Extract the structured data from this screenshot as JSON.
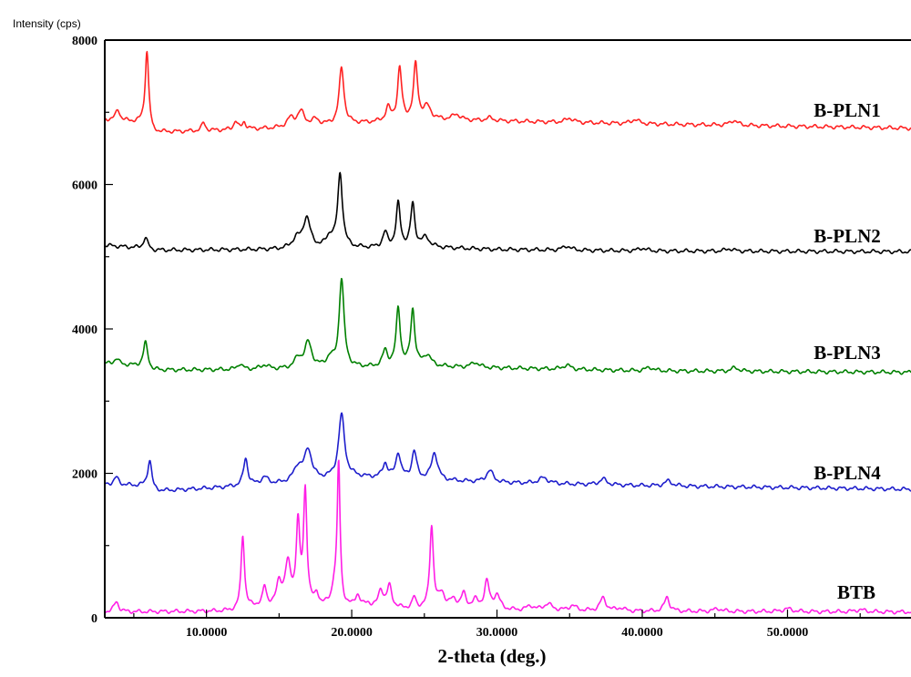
{
  "chart_data": {
    "type": "line",
    "ylabel": "Intensity (cps)",
    "xlabel": "2-theta (deg.)",
    "xlim": [
      3,
      58.5
    ],
    "ylim": [
      0,
      8000
    ],
    "grid": false,
    "x_ticks": [
      10,
      20,
      30,
      40,
      50
    ],
    "x_tick_labels": [
      "10.0000",
      "20.0000",
      "30.0000",
      "40.0000",
      "50.0000"
    ],
    "y_ticks": [
      0,
      2000,
      4000,
      6000,
      8000
    ],
    "y_tick_labels": [
      "0",
      "2000",
      "4000",
      "6000",
      "8000"
    ],
    "series": [
      {
        "name": "B-PLN1",
        "color": "#ff2222",
        "baseline": [
          [
            3,
            6900
          ],
          [
            6,
            6850
          ],
          [
            6.3,
            6720
          ],
          [
            15,
            6780
          ],
          [
            25,
            6900
          ],
          [
            30,
            6880
          ],
          [
            40,
            6840
          ],
          [
            58.5,
            6780
          ]
        ],
        "peaks": [
          [
            3.9,
            150,
            0.18
          ],
          [
            5.9,
            1000,
            0.14
          ],
          [
            9.8,
            110,
            0.15
          ],
          [
            12,
            120,
            0.15
          ],
          [
            12.6,
            100,
            0.15
          ],
          [
            15.8,
            120,
            0.3
          ],
          [
            16.5,
            200,
            0.3
          ],
          [
            17.5,
            80,
            0.3
          ],
          [
            19.3,
            780,
            0.2
          ],
          [
            22.5,
            180,
            0.2
          ],
          [
            23.3,
            720,
            0.17
          ],
          [
            24.4,
            760,
            0.17
          ],
          [
            25.2,
            170,
            0.3
          ],
          [
            27.2,
            80,
            0.3
          ],
          [
            29.5,
            40,
            0.3
          ],
          [
            35,
            60,
            0.3
          ],
          [
            39.5,
            60,
            0.3
          ],
          [
            46.3,
            70,
            0.3
          ]
        ]
      },
      {
        "name": "B-PLN2",
        "color": "#000000",
        "baseline": [
          [
            3,
            5160
          ],
          [
            6,
            5110
          ],
          [
            6.3,
            5090
          ],
          [
            15,
            5100
          ],
          [
            25,
            5130
          ],
          [
            30,
            5100
          ],
          [
            40,
            5080
          ],
          [
            58.5,
            5070
          ]
        ],
        "peaks": [
          [
            5.8,
            150,
            0.18
          ],
          [
            16.2,
            130,
            0.35
          ],
          [
            16.9,
            420,
            0.3
          ],
          [
            18.5,
            150,
            0.3
          ],
          [
            19.2,
            1020,
            0.2
          ],
          [
            22.3,
            200,
            0.2
          ],
          [
            23.2,
            600,
            0.17
          ],
          [
            24.2,
            590,
            0.17
          ],
          [
            25.1,
            130,
            0.3
          ],
          [
            34.8,
            60,
            0.3
          ],
          [
            40,
            40,
            0.3
          ],
          [
            46,
            35,
            0.3
          ]
        ]
      },
      {
        "name": "B-PLN3",
        "color": "#008000",
        "baseline": [
          [
            3,
            3520
          ],
          [
            6,
            3480
          ],
          [
            6.3,
            3430
          ],
          [
            15,
            3440
          ],
          [
            25,
            3480
          ],
          [
            30,
            3460
          ],
          [
            40,
            3420
          ],
          [
            58.5,
            3400
          ]
        ],
        "peaks": [
          [
            3.8,
            80,
            0.2
          ],
          [
            5.8,
            330,
            0.17
          ],
          [
            12.3,
            80,
            0.2
          ],
          [
            14,
            60,
            0.3
          ],
          [
            16.3,
            130,
            0.3
          ],
          [
            17,
            350,
            0.3
          ],
          [
            18.5,
            120,
            0.3
          ],
          [
            19.3,
            1230,
            0.2
          ],
          [
            22.3,
            220,
            0.2
          ],
          [
            23.2,
            800,
            0.17
          ],
          [
            24.2,
            780,
            0.17
          ],
          [
            25.2,
            150,
            0.3
          ],
          [
            28.5,
            70,
            0.3
          ],
          [
            34.8,
            60,
            0.3
          ],
          [
            40.5,
            50,
            0.3
          ],
          [
            46.4,
            50,
            0.3
          ]
        ]
      },
      {
        "name": "B-PLN4",
        "color": "#1e1ecc",
        "baseline": [
          [
            3,
            1850
          ],
          [
            6,
            1820
          ],
          [
            6.4,
            1750
          ],
          [
            15,
            1850
          ],
          [
            20,
            1950
          ],
          [
            26,
            1900
          ],
          [
            30,
            1870
          ],
          [
            40,
            1830
          ],
          [
            58.5,
            1780
          ]
        ],
        "peaks": [
          [
            3.8,
            100,
            0.2
          ],
          [
            6.1,
            380,
            0.17
          ],
          [
            12.7,
            380,
            0.18
          ],
          [
            14,
            100,
            0.3
          ],
          [
            16.3,
            200,
            0.35
          ],
          [
            17,
            420,
            0.3
          ],
          [
            19.3,
            870,
            0.25
          ],
          [
            22.3,
            200,
            0.2
          ],
          [
            23.2,
            350,
            0.2
          ],
          [
            24.3,
            380,
            0.2
          ],
          [
            25.7,
            380,
            0.25
          ],
          [
            29.5,
            160,
            0.3
          ],
          [
            33.2,
            80,
            0.4
          ],
          [
            37.3,
            80,
            0.3
          ],
          [
            41.8,
            70,
            0.3
          ]
        ]
      },
      {
        "name": "BTB",
        "color": "#ff1ee6",
        "baseline": [
          [
            3,
            80
          ],
          [
            12,
            90
          ],
          [
            13.5,
            150
          ],
          [
            18,
            150
          ],
          [
            20,
            130
          ],
          [
            30,
            100
          ],
          [
            40,
            90
          ],
          [
            58.5,
            80
          ]
        ],
        "peaks": [
          [
            3.8,
            140,
            0.2
          ],
          [
            12.5,
            1030,
            0.14
          ],
          [
            14,
            260,
            0.15
          ],
          [
            15,
            300,
            0.2
          ],
          [
            15.6,
            560,
            0.25
          ],
          [
            16.3,
            1100,
            0.15
          ],
          [
            16.8,
            1560,
            0.14
          ],
          [
            17.6,
            140,
            0.15
          ],
          [
            18.8,
            240,
            0.2
          ],
          [
            19.1,
            1950,
            0.12
          ],
          [
            20.4,
            170,
            0.2
          ],
          [
            21.1,
            60,
            0.2
          ],
          [
            22,
            250,
            0.2
          ],
          [
            22.6,
            300,
            0.2
          ],
          [
            24.3,
            150,
            0.15
          ],
          [
            25.5,
            1140,
            0.15
          ],
          [
            26.2,
            200,
            0.25
          ],
          [
            27,
            120,
            0.3
          ],
          [
            27.7,
            200,
            0.2
          ],
          [
            28.5,
            120,
            0.25
          ],
          [
            29.3,
            380,
            0.2
          ],
          [
            30,
            200,
            0.25
          ],
          [
            32.3,
            60,
            0.3
          ],
          [
            33.5,
            90,
            0.35
          ],
          [
            35.2,
            70,
            0.3
          ],
          [
            37.3,
            180,
            0.25
          ],
          [
            38.5,
            40,
            0.3
          ],
          [
            41.7,
            200,
            0.2
          ],
          [
            45.2,
            40,
            0.3
          ],
          [
            50,
            40,
            0.4
          ],
          [
            55,
            30,
            0.4
          ]
        ]
      }
    ]
  }
}
